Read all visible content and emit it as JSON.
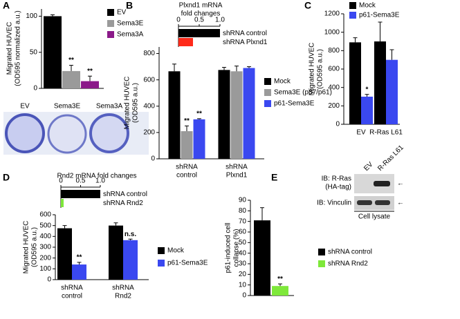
{
  "chart_data": [
    {
      "type": "bar",
      "panel": "A",
      "ylabel": [
        "Migrated HUVEC",
        "(OD595 normalized a.u.)"
      ],
      "categories": [
        null
      ],
      "series": [
        {
          "name": "EV",
          "color": "#000000",
          "values": [
            100
          ],
          "errors": [
            2
          ],
          "significance": [
            null
          ]
        },
        {
          "name": "Sema3E",
          "color": "#9a9a9a",
          "values": [
            24
          ],
          "errors": [
            8
          ],
          "significance": [
            "**"
          ]
        },
        {
          "name": "Sema3A",
          "color": "#8b1a89",
          "values": [
            10
          ],
          "errors": [
            7
          ],
          "significance": [
            "**"
          ]
        }
      ],
      "ylim": [
        0,
        110
      ],
      "yticks": [
        0,
        50,
        100
      ],
      "wells": [
        "EV",
        "Sema3E",
        "Sema3A"
      ]
    },
    {
      "type": "bar",
      "panel": "B",
      "ylabel": [
        "Migrated HUVEC",
        "(OD595 a.u.)"
      ],
      "categories": [
        [
          "shRNA",
          "control"
        ],
        [
          "shRNA",
          "Plxnd1"
        ]
      ],
      "series": [
        {
          "name": "Mock",
          "color": "#000000",
          "values": [
            665,
            675
          ],
          "errors": [
            55,
            20
          ],
          "significance": [
            null,
            null
          ]
        },
        {
          "name": "Sema3E (p87/p61)",
          "color": "#9a9a9a",
          "values": [
            210,
            665
          ],
          "errors": [
            40,
            40
          ],
          "significance": [
            "**",
            null
          ]
        },
        {
          "name": "p61-Sema3E",
          "color": "#3a48f0",
          "values": [
            300,
            690
          ],
          "errors": [
            5,
            10
          ],
          "significance": [
            "**",
            null
          ]
        }
      ],
      "ylim": [
        0,
        850
      ],
      "yticks": [
        0,
        200,
        400,
        600,
        800
      ]
    },
    {
      "type": "bar",
      "orientation": "horizontal",
      "title": [
        "Plxnd1 mRNA",
        "fold changes"
      ],
      "categories": [
        "shRNA control",
        "shRNA Plxnd1"
      ],
      "values": [
        1.0,
        0.35
      ],
      "colors": [
        "#000000",
        "#ff2a1a"
      ],
      "xlim": [
        0,
        1
      ],
      "xticks": [
        0,
        0.5,
        {
          "value": 1,
          "label": "1.0"
        }
      ]
    },
    {
      "type": "bar",
      "panel": "C",
      "ylabel": [
        "Migrated HUVEC",
        "(OD595 a.u.)"
      ],
      "categories": [
        [
          "EV"
        ],
        [
          "R-Ras L61"
        ]
      ],
      "series": [
        {
          "name": "Mock",
          "color": "#000000",
          "values": [
            890,
            900
          ],
          "errors": [
            50,
            210
          ],
          "significance": [
            null,
            null
          ]
        },
        {
          "name": "p61-Sema3E",
          "color": "#3a48f0",
          "values": [
            300,
            700
          ],
          "errors": [
            25,
            110
          ],
          "significance": [
            "*",
            null
          ]
        }
      ],
      "ylim": [
        0,
        1200
      ],
      "yticks": [
        0,
        200,
        400,
        600,
        800,
        1000,
        1200
      ],
      "blot": {
        "lanes": [
          "EV",
          "R-Ras L61"
        ],
        "rows": [
          [
            "IB: R-Ras",
            "(HA-tag)"
          ],
          [
            "IB: Vinculin"
          ]
        ],
        "caption": "Cell lysate"
      }
    },
    {
      "type": "bar",
      "panel": "D",
      "ylabel": [
        "Migrated HUVEC",
        "(OD595 a.u.)"
      ],
      "categories": [
        [
          "shRNA",
          "control"
        ],
        [
          "shRNA",
          "Rnd2"
        ]
      ],
      "series": [
        {
          "name": "Mock",
          "color": "#000000",
          "values": [
            475,
            500
          ],
          "errors": [
            25,
            25
          ],
          "significance": [
            null,
            null
          ]
        },
        {
          "name": "p61-Sema3E",
          "color": "#3a48f0",
          "values": [
            140,
            365
          ],
          "errors": [
            20,
            10
          ],
          "significance": [
            "**",
            "n.s."
          ]
        }
      ],
      "ylim": [
        0,
        600
      ],
      "yticks": [
        0,
        100,
        200,
        300,
        400,
        500,
        600
      ]
    },
    {
      "type": "bar",
      "orientation": "horizontal",
      "title": [
        "Rnd2 mRNA fold changes"
      ],
      "categories": [
        "shRNA control",
        "shRNA Rnd2"
      ],
      "values": [
        1.0,
        0.07
      ],
      "colors": [
        "#000000",
        "#7ee83a"
      ],
      "xlim": [
        0,
        1
      ],
      "xticks": [
        0,
        0.5,
        {
          "value": 1,
          "label": "1.0"
        }
      ]
    },
    {
      "type": "bar",
      "panel": "E",
      "ylabel": [
        "p61-induced cell",
        "collapse (%)"
      ],
      "categories": [
        null
      ],
      "series": [
        {
          "name": "shRNA control",
          "color": "#000000",
          "values": [
            71
          ],
          "errors": [
            12
          ],
          "significance": [
            null
          ]
        },
        {
          "name": "shRNA Rnd2",
          "color": "#7ee83a",
          "values": [
            9
          ],
          "errors": [
            2
          ],
          "significance": [
            "**"
          ]
        }
      ],
      "ylim": [
        0,
        90
      ],
      "yticks": [
        0,
        10,
        20,
        30,
        40,
        50,
        60,
        70,
        80,
        90
      ]
    }
  ]
}
